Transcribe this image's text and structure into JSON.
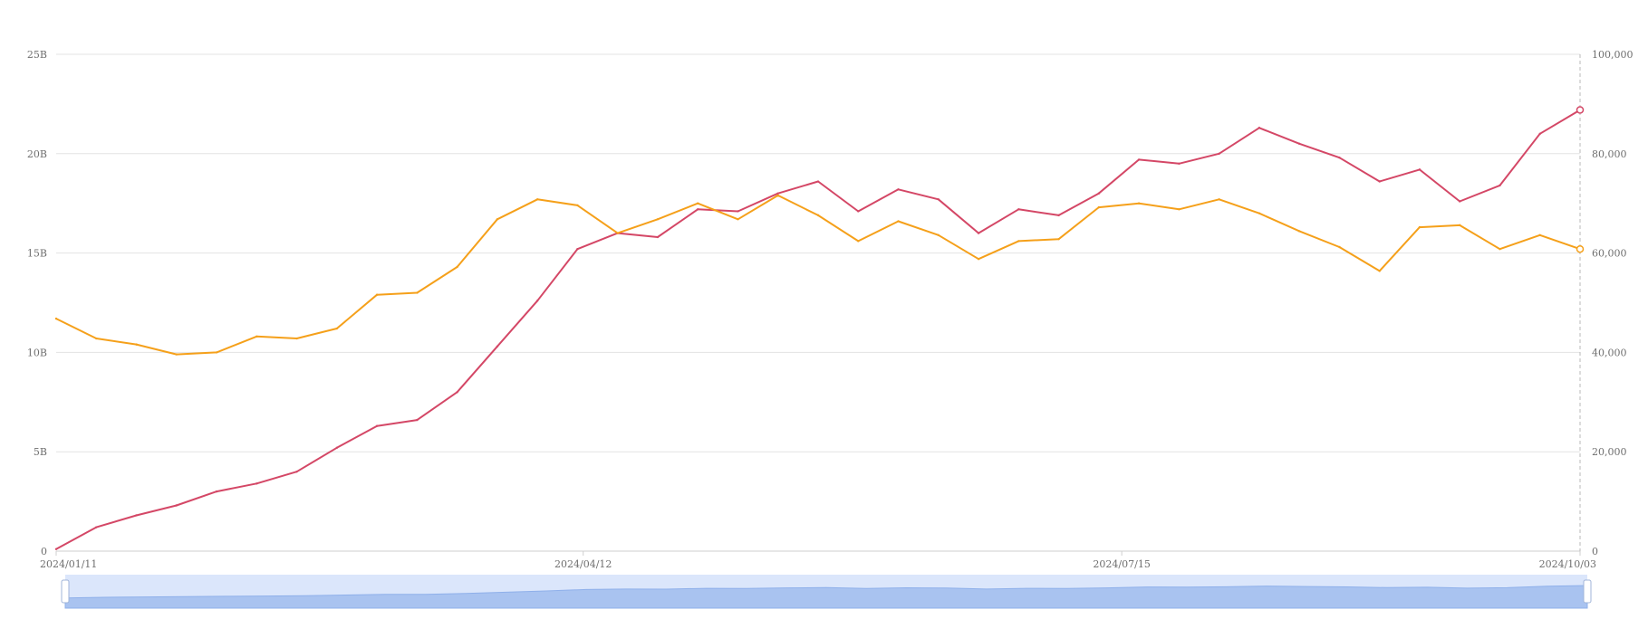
{
  "colors": {
    "series_1": "#d44766",
    "series_2": "#f5a01a",
    "grid": "#e3e3e3",
    "axis_text": "#6e6e6e",
    "zoom_fill": "#a9c3f0",
    "zoom_bg": "#dbe6fb"
  },
  "chart_data": {
    "type": "line",
    "title": "",
    "xlabel": "",
    "ylabel_left": "",
    "ylabel_right": "",
    "x_tick_labels": [
      "2024/01/11",
      "2024/04/12",
      "2024/07/15",
      "2024/10/03"
    ],
    "x_range": [
      "2024/01/11",
      "2024/10/03"
    ],
    "y_left": {
      "range": [
        0,
        25
      ],
      "unit": "B",
      "tick_labels": [
        "0",
        "5B",
        "10B",
        "15B",
        "20B",
        "25B"
      ]
    },
    "y_right": {
      "range": [
        0,
        100000
      ],
      "tick_labels": [
        "0",
        "20,000",
        "40,000",
        "60,000",
        "80,000",
        "100,000"
      ]
    },
    "grid": true,
    "legend": "none",
    "data_zoom": {
      "visible": true,
      "start": 0,
      "end": 100
    },
    "series": [
      {
        "axis": "left",
        "color": "#d44766",
        "points": [
          [
            "2024/01/11",
            0.1
          ],
          [
            "2024/01/18",
            1.2
          ],
          [
            "2024/01/25",
            1.8
          ],
          [
            "2024/02/01",
            2.3
          ],
          [
            "2024/02/08",
            3.0
          ],
          [
            "2024/02/15",
            3.4
          ],
          [
            "2024/02/22",
            4.0
          ],
          [
            "2024/02/29",
            5.2
          ],
          [
            "2024/03/07",
            6.3
          ],
          [
            "2024/03/14",
            6.6
          ],
          [
            "2024/03/21",
            8.0
          ],
          [
            "2024/03/28",
            10.3
          ],
          [
            "2024/04/04",
            12.6
          ],
          [
            "2024/04/11",
            15.2
          ],
          [
            "2024/04/18",
            16.0
          ],
          [
            "2024/04/25",
            15.8
          ],
          [
            "2024/05/02",
            17.2
          ],
          [
            "2024/05/09",
            17.1
          ],
          [
            "2024/05/16",
            18.0
          ],
          [
            "2024/05/23",
            18.6
          ],
          [
            "2024/05/30",
            17.1
          ],
          [
            "2024/06/06",
            18.2
          ],
          [
            "2024/06/13",
            17.7
          ],
          [
            "2024/06/20",
            16.0
          ],
          [
            "2024/06/27",
            17.2
          ],
          [
            "2024/07/04",
            16.9
          ],
          [
            "2024/07/11",
            18.0
          ],
          [
            "2024/07/18",
            19.7
          ],
          [
            "2024/07/25",
            19.5
          ],
          [
            "2024/08/01",
            20.0
          ],
          [
            "2024/08/08",
            21.3
          ],
          [
            "2024/08/15",
            20.5
          ],
          [
            "2024/08/22",
            19.8
          ],
          [
            "2024/08/29",
            18.6
          ],
          [
            "2024/09/05",
            19.2
          ],
          [
            "2024/09/12",
            17.6
          ],
          [
            "2024/09/19",
            18.4
          ],
          [
            "2024/09/26",
            21.0
          ],
          [
            "2024/10/03",
            22.2
          ]
        ]
      },
      {
        "axis": "left",
        "color": "#f5a01a",
        "points": [
          [
            "2024/01/11",
            11.7
          ],
          [
            "2024/01/18",
            10.7
          ],
          [
            "2024/01/25",
            10.4
          ],
          [
            "2024/02/01",
            9.9
          ],
          [
            "2024/02/08",
            10.0
          ],
          [
            "2024/02/15",
            10.8
          ],
          [
            "2024/02/22",
            10.7
          ],
          [
            "2024/02/29",
            11.2
          ],
          [
            "2024/03/07",
            12.9
          ],
          [
            "2024/03/14",
            13.0
          ],
          [
            "2024/03/21",
            14.3
          ],
          [
            "2024/03/28",
            16.7
          ],
          [
            "2024/04/04",
            17.7
          ],
          [
            "2024/04/11",
            17.4
          ],
          [
            "2024/04/18",
            16.0
          ],
          [
            "2024/04/25",
            16.7
          ],
          [
            "2024/05/02",
            17.5
          ],
          [
            "2024/05/09",
            16.7
          ],
          [
            "2024/05/16",
            17.9
          ],
          [
            "2024/05/23",
            16.9
          ],
          [
            "2024/05/30",
            15.6
          ],
          [
            "2024/06/06",
            16.6
          ],
          [
            "2024/06/13",
            15.9
          ],
          [
            "2024/06/20",
            14.7
          ],
          [
            "2024/06/27",
            15.6
          ],
          [
            "2024/07/04",
            15.7
          ],
          [
            "2024/07/11",
            17.3
          ],
          [
            "2024/07/18",
            17.5
          ],
          [
            "2024/07/25",
            17.2
          ],
          [
            "2024/08/01",
            17.7
          ],
          [
            "2024/08/08",
            17.0
          ],
          [
            "2024/08/15",
            16.1
          ],
          [
            "2024/08/22",
            15.3
          ],
          [
            "2024/08/29",
            14.1
          ],
          [
            "2024/09/05",
            16.3
          ],
          [
            "2024/09/12",
            16.4
          ],
          [
            "2024/09/19",
            15.2
          ],
          [
            "2024/09/26",
            15.9
          ],
          [
            "2024/10/03",
            15.2
          ]
        ]
      }
    ]
  }
}
